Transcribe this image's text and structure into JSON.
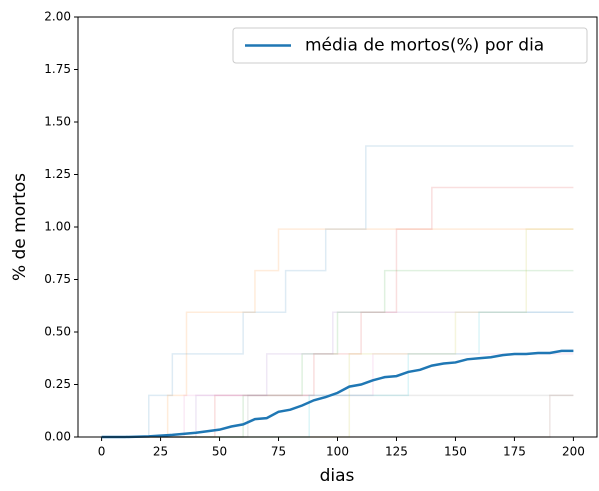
{
  "chart_data": {
    "type": "line",
    "xlabel": "dias",
    "ylabel": "% de mortos",
    "xlim": [
      -10,
      210
    ],
    "ylim": [
      0,
      2
    ],
    "xticks": [
      0,
      25,
      50,
      75,
      100,
      125,
      150,
      175,
      200
    ],
    "yticks": [
      {
        "value": 0,
        "label": "0.00"
      },
      {
        "value": 0.25,
        "label": "0.25"
      },
      {
        "value": 0.5,
        "label": "0.50"
      },
      {
        "value": 0.75,
        "label": "0.75"
      },
      {
        "value": 1,
        "label": "1.00"
      },
      {
        "value": 1.25,
        "label": "1.25"
      },
      {
        "value": 1.5,
        "label": "1.50"
      },
      {
        "value": 1.75,
        "label": "1.75"
      },
      {
        "value": 2,
        "label": "2.00"
      }
    ],
    "legend": "upper right",
    "series": [
      {
        "name": "média de mortos(%) por dia",
        "color": "#1f77b4",
        "x": [
          0,
          10,
          20,
          30,
          40,
          50,
          55,
          60,
          65,
          70,
          75,
          80,
          85,
          90,
          95,
          100,
          105,
          110,
          115,
          120,
          125,
          130,
          135,
          140,
          145,
          150,
          155,
          160,
          165,
          170,
          175,
          180,
          185,
          190,
          195,
          200
        ],
        "values": [
          0,
          0,
          0.003,
          0.01,
          0.02,
          0.035,
          0.05,
          0.06,
          0.085,
          0.09,
          0.12,
          0.13,
          0.15,
          0.175,
          0.19,
          0.21,
          0.24,
          0.25,
          0.27,
          0.285,
          0.29,
          0.31,
          0.32,
          0.34,
          0.35,
          0.355,
          0.37,
          0.375,
          0.38,
          0.39,
          0.395,
          0.395,
          0.4,
          0.4,
          0.41,
          0.41
        ]
      },
      {
        "color": "#1f77b4",
        "alpha": 0.15,
        "drawstyle": "steps-post",
        "x": [
          0,
          20,
          30,
          60,
          78,
          95,
          112,
          200
        ],
        "values": [
          0,
          0.198,
          0.396,
          0.594,
          0.792,
          0.99,
          1.386,
          1.386
        ]
      },
      {
        "color": "#ff7f0e",
        "alpha": 0.15,
        "drawstyle": "steps-post",
        "x": [
          0,
          28,
          36,
          65,
          75,
          200
        ],
        "values": [
          0,
          0.198,
          0.594,
          0.792,
          0.99,
          0.99
        ]
      },
      {
        "color": "#d62728",
        "alpha": 0.15,
        "drawstyle": "steps-post",
        "x": [
          0,
          48,
          90,
          110,
          125,
          140,
          200
        ],
        "values": [
          0,
          0.198,
          0.396,
          0.594,
          0.99,
          1.188,
          1.188
        ]
      },
      {
        "color": "#2ca02c",
        "alpha": 0.15,
        "drawstyle": "steps-post",
        "x": [
          0,
          60,
          85,
          100,
          120,
          200
        ],
        "values": [
          0,
          0.198,
          0.396,
          0.594,
          0.792,
          0.792
        ]
      },
      {
        "color": "#9467bd",
        "alpha": 0.15,
        "drawstyle": "steps-post",
        "x": [
          0,
          40,
          70,
          98,
          140,
          200
        ],
        "values": [
          0,
          0.198,
          0.396,
          0.594,
          0.594,
          0.594
        ]
      },
      {
        "color": "#e377c2",
        "alpha": 0.15,
        "drawstyle": "steps-post",
        "x": [
          0,
          35,
          100,
          115,
          200
        ],
        "values": [
          0,
          0.198,
          0.198,
          0.396,
          0.396
        ]
      },
      {
        "color": "#7f7f7f",
        "alpha": 0.15,
        "drawstyle": "steps-post",
        "x": [
          0,
          62,
          200
        ],
        "values": [
          0,
          0.198,
          0.198
        ]
      },
      {
        "color": "#bcbd22",
        "alpha": 0.15,
        "drawstyle": "steps-post",
        "x": [
          0,
          105,
          150,
          180,
          200
        ],
        "values": [
          0,
          0.396,
          0.594,
          0.99,
          0.99
        ]
      },
      {
        "color": "#17becf",
        "alpha": 0.15,
        "drawstyle": "steps-post",
        "x": [
          0,
          88,
          130,
          160,
          200
        ],
        "values": [
          0,
          0.198,
          0.396,
          0.594,
          0.594
        ]
      },
      {
        "color": "#8c564b",
        "alpha": 0.15,
        "drawstyle": "steps-post",
        "x": [
          0,
          190,
          200
        ],
        "values": [
          0,
          0.198,
          0.198
        ]
      }
    ]
  }
}
